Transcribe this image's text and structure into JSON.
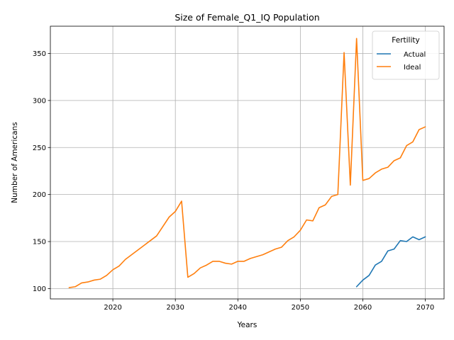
{
  "chart_data": {
    "type": "line",
    "title": "Size of Female_Q1_IQ Population",
    "xlabel": "Years",
    "ylabel": "Number of Americans",
    "xlim": [
      2010,
      2073
    ],
    "ylim": [
      89,
      379
    ],
    "xticks": [
      2020,
      2030,
      2040,
      2050,
      2060,
      2070
    ],
    "yticks": [
      100,
      150,
      200,
      250,
      300,
      350
    ],
    "grid": true,
    "legend": {
      "title": "Fertility",
      "position": "top-right"
    },
    "series": [
      {
        "name": "Actual",
        "color": "#1f77b4",
        "x": [
          2059,
          2060,
          2061,
          2062,
          2063,
          2064,
          2065,
          2066,
          2067,
          2068,
          2069,
          2070
        ],
        "y": [
          102,
          109,
          114,
          125,
          129,
          140,
          142,
          151,
          150,
          155,
          152,
          155
        ]
      },
      {
        "name": "Ideal",
        "color": "#ff7f0e",
        "x": [
          2013,
          2014,
          2015,
          2016,
          2017,
          2018,
          2019,
          2020,
          2021,
          2022,
          2023,
          2024,
          2025,
          2026,
          2027,
          2028,
          2029,
          2030,
          2031,
          2032,
          2033,
          2034,
          2035,
          2036,
          2037,
          2038,
          2039,
          2040,
          2041,
          2042,
          2043,
          2044,
          2045,
          2046,
          2047,
          2048,
          2049,
          2050,
          2051,
          2052,
          2053,
          2054,
          2055,
          2056,
          2057,
          2058,
          2059,
          2060,
          2061,
          2062,
          2063,
          2064,
          2065,
          2066,
          2067,
          2068,
          2069,
          2070
        ],
        "y": [
          101,
          102,
          106,
          107,
          109,
          110,
          114,
          120,
          124,
          131,
          136,
          141,
          146,
          151,
          156,
          166,
          176,
          182,
          193,
          112,
          116,
          122,
          125,
          129,
          129,
          127,
          126,
          129,
          129,
          132,
          134,
          136,
          139,
          142,
          144,
          151,
          155,
          162,
          173,
          172,
          186,
          189,
          198,
          200,
          351,
          210,
          366,
          215,
          217,
          223,
          227,
          229,
          236,
          239,
          252,
          256,
          269,
          272
        ]
      }
    ]
  }
}
